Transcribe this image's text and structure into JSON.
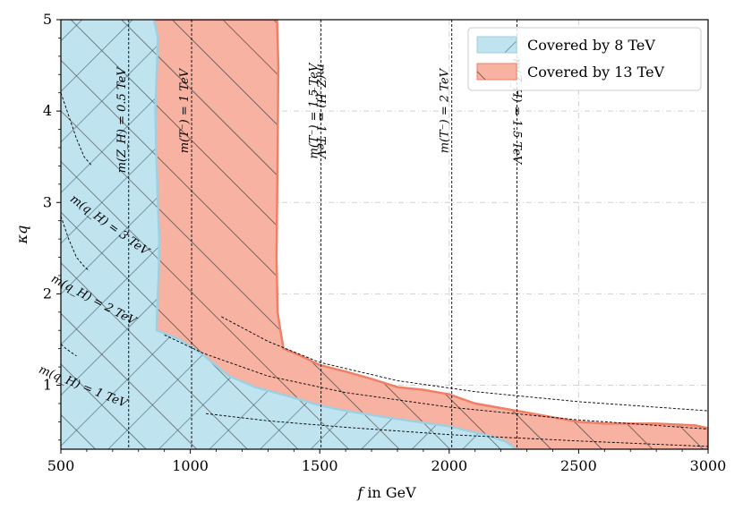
{
  "chart_data": {
    "type": "area",
    "xlabel_italic": "f",
    "xlabel_rest": " in GeV",
    "ylabel": "κq",
    "xlim": [
      500,
      3000
    ],
    "ylim": [
      0.3,
      5
    ],
    "x_ticks": [
      500,
      1000,
      1500,
      2000,
      2500,
      3000
    ],
    "x_tick_labels": [
      "500",
      "1000",
      "1500",
      "2000",
      "2500",
      "3000"
    ],
    "y_ticks": [
      1,
      2,
      3,
      4,
      5
    ],
    "y_tick_labels": [
      "1",
      "2",
      "3",
      "4",
      "5"
    ],
    "grid": true,
    "legend_position": "top-right",
    "colors": {
      "covered_8": "#bfe3ef",
      "covered_8_edge": "#9ed0e2",
      "covered_13": "#f8b2a2",
      "covered_13_edge": "#f07f68",
      "hatch": "#4a4a4a"
    },
    "series": [
      {
        "name": "Covered by 8 TeV",
        "boundary": [
          [
            500,
            5
          ],
          [
            860,
            5
          ],
          [
            875,
            4.8
          ],
          [
            870,
            4.4
          ],
          [
            865,
            4.0
          ],
          [
            868,
            3.6
          ],
          [
            875,
            3.0
          ],
          [
            880,
            2.6
          ],
          [
            878,
            2.2
          ],
          [
            872,
            1.85
          ],
          [
            870,
            1.6
          ],
          [
            960,
            1.5
          ],
          [
            1050,
            1.33
          ],
          [
            1150,
            1.1
          ],
          [
            1250,
            0.98
          ],
          [
            1380,
            0.88
          ],
          [
            1500,
            0.78
          ],
          [
            1600,
            0.72
          ],
          [
            1800,
            0.63
          ],
          [
            2000,
            0.55
          ],
          [
            2150,
            0.45
          ],
          [
            2220,
            0.38
          ],
          [
            2260,
            0.3
          ],
          [
            500,
            0.3
          ]
        ]
      },
      {
        "name": "Covered by 13 TeV",
        "boundary": [
          [
            860,
            5
          ],
          [
            1335,
            5
          ],
          [
            1340,
            4.5
          ],
          [
            1337,
            3.5
          ],
          [
            1333,
            2.4
          ],
          [
            1337,
            1.8
          ],
          [
            1348,
            1.6
          ],
          [
            1360,
            1.4
          ],
          [
            1420,
            1.33
          ],
          [
            1500,
            1.22
          ],
          [
            1600,
            1.15
          ],
          [
            1700,
            1.07
          ],
          [
            1800,
            0.98
          ],
          [
            1900,
            0.95
          ],
          [
            2000,
            0.9
          ],
          [
            2100,
            0.8
          ],
          [
            2200,
            0.75
          ],
          [
            2300,
            0.7
          ],
          [
            2400,
            0.65
          ],
          [
            2500,
            0.6
          ],
          [
            2600,
            0.58
          ],
          [
            2800,
            0.58
          ],
          [
            2950,
            0.56
          ],
          [
            3000,
            0.53
          ],
          [
            3000,
            0.3
          ],
          [
            2260,
            0.3
          ],
          [
            2220,
            0.38
          ],
          [
            2150,
            0.45
          ],
          [
            2000,
            0.55
          ],
          [
            1800,
            0.63
          ],
          [
            1600,
            0.72
          ],
          [
            1500,
            0.78
          ],
          [
            1380,
            0.88
          ],
          [
            1250,
            0.98
          ],
          [
            1150,
            1.1
          ],
          [
            1050,
            1.33
          ],
          [
            960,
            1.5
          ],
          [
            870,
            1.6
          ],
          [
            872,
            1.85
          ],
          [
            878,
            2.2
          ],
          [
            880,
            2.6
          ],
          [
            875,
            3.0
          ],
          [
            868,
            3.6
          ],
          [
            865,
            4.0
          ],
          [
            870,
            4.4
          ],
          [
            875,
            4.8
          ]
        ]
      }
    ],
    "vlines": [
      {
        "x": 762,
        "label": "m(Z_H) = 0.5 TeV",
        "label_y": 3.9,
        "flip": false
      },
      {
        "x": 1005,
        "label": "m(T⁻) = 1 TeV",
        "label_y": 4.0,
        "flip": false
      },
      {
        "x": 1505,
        "label": "m(T⁻) = 1.5 TeV",
        "label_y": 4.0,
        "flip": false
      },
      {
        "x": 1505,
        "label": "m(Z_H) = 1 TeV",
        "label_y": 4.0,
        "flip": true
      },
      {
        "x": 2010,
        "label": "m(T⁻) = 2 TeV",
        "label_y": 4.0,
        "flip": false
      },
      {
        "x": 2262,
        "label": "m(Z_H) = 1.5 TeV",
        "label_y": 4.0,
        "flip": true
      }
    ],
    "curves": [
      {
        "label": "m(q_H) = 3 TeV",
        "points": [
          [
            500,
            4.2
          ],
          [
            530,
            3.95
          ],
          [
            560,
            3.7
          ],
          [
            590,
            3.5
          ],
          [
            620,
            3.4
          ]
        ],
        "label_pos": [
          680,
          2.72
        ],
        "label_angle": 36
      },
      {
        "label": "m(q_H) = 3 TeV",
        "points": [
          [
            1120,
            1.75
          ],
          [
            1300,
            1.48
          ],
          [
            1500,
            1.25
          ],
          [
            1800,
            1.05
          ],
          [
            2100,
            0.93
          ],
          [
            2500,
            0.82
          ],
          [
            3000,
            0.72
          ]
        ],
        "label_pos": null,
        "label_angle": 0
      },
      {
        "label": "m(q_H) = 2 TeV",
        "points": [
          [
            500,
            2.85
          ],
          [
            530,
            2.6
          ],
          [
            560,
            2.4
          ],
          [
            590,
            2.3
          ],
          [
            610,
            2.25
          ]
        ],
        "label_pos": [
          620,
          1.9
        ],
        "label_angle": 28
      },
      {
        "label": "m(q_H) = 2 TeV",
        "points": [
          [
            900,
            1.55
          ],
          [
            1050,
            1.35
          ],
          [
            1300,
            1.1
          ],
          [
            1600,
            0.92
          ],
          [
            2000,
            0.76
          ],
          [
            2500,
            0.62
          ],
          [
            3000,
            0.52
          ]
        ],
        "label_pos": null,
        "label_angle": 0
      },
      {
        "label": "m(q_H) = 1 TeV",
        "points": [
          [
            500,
            1.45
          ],
          [
            520,
            1.4
          ],
          [
            545,
            1.35
          ],
          [
            560,
            1.32
          ]
        ],
        "label_pos": [
          580,
          0.95
        ],
        "label_angle": 22
      },
      {
        "label": "m(q_H) = 1 TeV",
        "points": [
          [
            1060,
            0.69
          ],
          [
            1300,
            0.61
          ],
          [
            1600,
            0.54
          ],
          [
            2000,
            0.46
          ],
          [
            2500,
            0.39
          ],
          [
            3000,
            0.33
          ]
        ],
        "label_pos": null,
        "label_angle": 0
      }
    ]
  }
}
